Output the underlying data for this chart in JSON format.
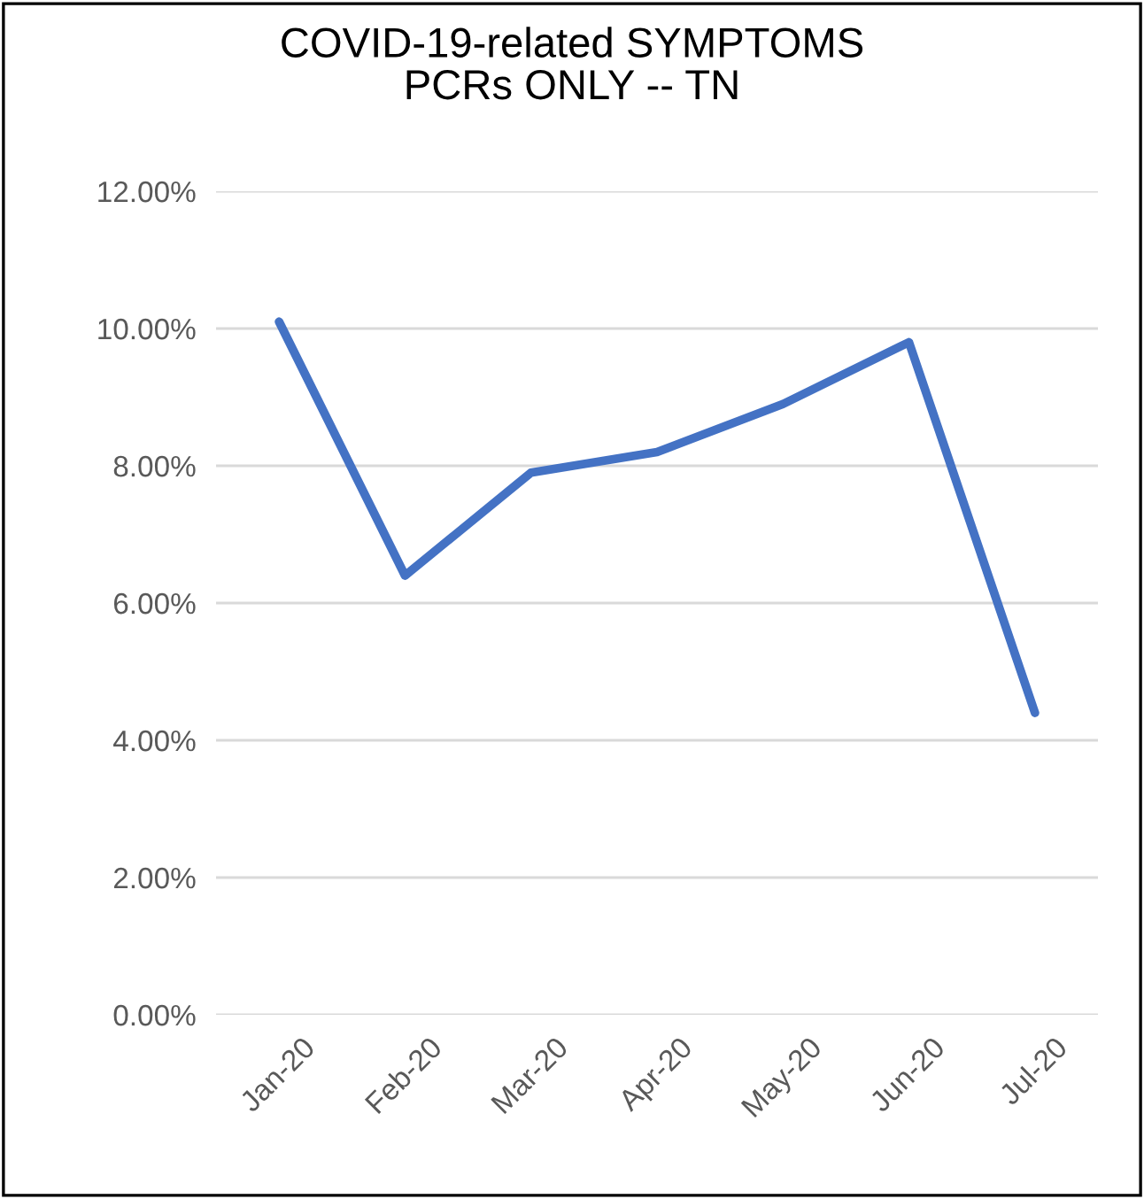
{
  "chart_data": {
    "type": "line",
    "title": "COVID-19-related SYMPTOMS\nPCRs ONLY -- TN",
    "categories": [
      "Jan-20",
      "Feb-20",
      "Mar-20",
      "Apr-20",
      "May-20",
      "Jun-20",
      "Jul-20"
    ],
    "series": [
      {
        "color": "#4472c4",
        "values": [
          10.1,
          6.4,
          7.9,
          8.2,
          8.9,
          9.8,
          4.4
        ]
      }
    ],
    "ylim": [
      0,
      12
    ],
    "yticks": [
      {
        "value": 0,
        "label": "0.00%"
      },
      {
        "value": 2,
        "label": "2.00%"
      },
      {
        "value": 4,
        "label": "4.00%"
      },
      {
        "value": 6,
        "label": "6.00%"
      },
      {
        "value": 8,
        "label": "8.00%"
      },
      {
        "value": 10,
        "label": "10.00%"
      },
      {
        "value": 12,
        "label": "12.00%"
      }
    ],
    "grid": "y",
    "marker": "none",
    "line_style": "solid",
    "legend": false
  }
}
